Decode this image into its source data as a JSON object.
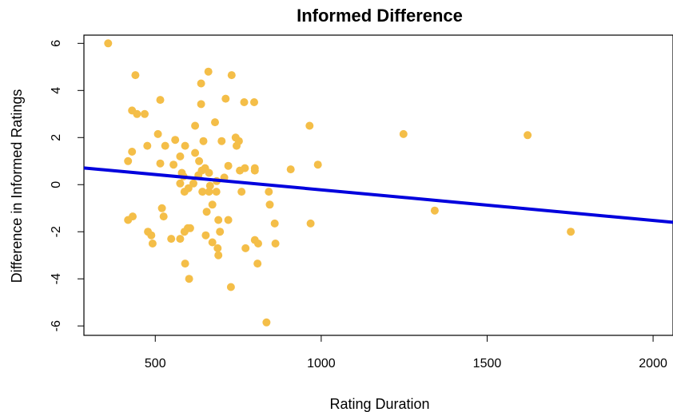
{
  "chart_data": {
    "type": "scatter",
    "title": "Informed Difference",
    "xlabel": "Rating Duration",
    "ylabel": "Difference in Informed Ratings",
    "xlim": [
      285,
      2060
    ],
    "ylim": [
      -6.4,
      6.35
    ],
    "xticks": [
      500,
      1000,
      1500,
      2000
    ],
    "yticks": [
      -6,
      -4,
      -2,
      0,
      2,
      4,
      6
    ],
    "grid": false,
    "legend": "none",
    "point_color": "#F4BE48",
    "line_color": "#0000DD",
    "regression_line": {
      "intercept": 1.08,
      "slope": -0.0013
    },
    "points": [
      [
        358,
        6.0
      ],
      [
        440,
        4.65
      ],
      [
        430,
        3.15
      ],
      [
        445,
        3.0
      ],
      [
        468,
        3.0
      ],
      [
        515,
        3.6
      ],
      [
        660,
        4.8
      ],
      [
        638,
        4.3
      ],
      [
        730,
        4.65
      ],
      [
        638,
        3.42
      ],
      [
        712,
        3.65
      ],
      [
        768,
        3.5
      ],
      [
        798,
        3.5
      ],
      [
        680,
        2.65
      ],
      [
        620,
        2.5
      ],
      [
        965,
        2.5
      ],
      [
        1248,
        2.15
      ],
      [
        1622,
        2.1
      ],
      [
        508,
        2.15
      ],
      [
        560,
        1.9
      ],
      [
        530,
        1.65
      ],
      [
        590,
        1.65
      ],
      [
        476,
        1.65
      ],
      [
        430,
        1.4
      ],
      [
        645,
        1.85
      ],
      [
        700,
        1.85
      ],
      [
        742,
        2.0
      ],
      [
        752,
        1.85
      ],
      [
        745,
        1.65
      ],
      [
        620,
        1.35
      ],
      [
        575,
        1.2
      ],
      [
        418,
        1.0
      ],
      [
        515,
        0.9
      ],
      [
        555,
        0.85
      ],
      [
        632,
        1.0
      ],
      [
        770,
        0.7
      ],
      [
        720,
        0.8
      ],
      [
        755,
        0.6
      ],
      [
        800,
        0.6
      ],
      [
        908,
        0.65
      ],
      [
        990,
        0.85
      ],
      [
        800,
        0.7
      ],
      [
        650,
        0.7
      ],
      [
        640,
        0.6
      ],
      [
        662,
        0.5
      ],
      [
        580,
        0.5
      ],
      [
        585,
        0.35
      ],
      [
        630,
        0.4
      ],
      [
        575,
        0.05
      ],
      [
        615,
        0.05
      ],
      [
        665,
        -0.05
      ],
      [
        685,
        0.15
      ],
      [
        708,
        0.3
      ],
      [
        600,
        -0.15
      ],
      [
        588,
        -0.3
      ],
      [
        642,
        -0.3
      ],
      [
        662,
        -0.3
      ],
      [
        684,
        -0.3
      ],
      [
        760,
        -0.3
      ],
      [
        842,
        -0.3
      ],
      [
        672,
        -0.85
      ],
      [
        845,
        -0.85
      ],
      [
        520,
        -1.0
      ],
      [
        655,
        -1.15
      ],
      [
        525,
        -1.35
      ],
      [
        432,
        -1.35
      ],
      [
        418,
        -1.5
      ],
      [
        690,
        -1.5
      ],
      [
        720,
        -1.5
      ],
      [
        860,
        -1.65
      ],
      [
        968,
        -1.65
      ],
      [
        1342,
        -1.1
      ],
      [
        478,
        -2.0
      ],
      [
        488,
        -2.15
      ],
      [
        588,
        -2.0
      ],
      [
        598,
        -1.85
      ],
      [
        605,
        -1.85
      ],
      [
        695,
        -2.0
      ],
      [
        1752,
        -2.0
      ],
      [
        548,
        -2.3
      ],
      [
        575,
        -2.3
      ],
      [
        652,
        -2.15
      ],
      [
        800,
        -2.35
      ],
      [
        810,
        -2.5
      ],
      [
        862,
        -2.5
      ],
      [
        492,
        -2.5
      ],
      [
        672,
        -2.45
      ],
      [
        688,
        -2.7
      ],
      [
        772,
        -2.7
      ],
      [
        690,
        -3.0
      ],
      [
        590,
        -3.35
      ],
      [
        808,
        -3.35
      ],
      [
        602,
        -4.0
      ],
      [
        728,
        -4.35
      ],
      [
        835,
        -5.85
      ]
    ]
  }
}
